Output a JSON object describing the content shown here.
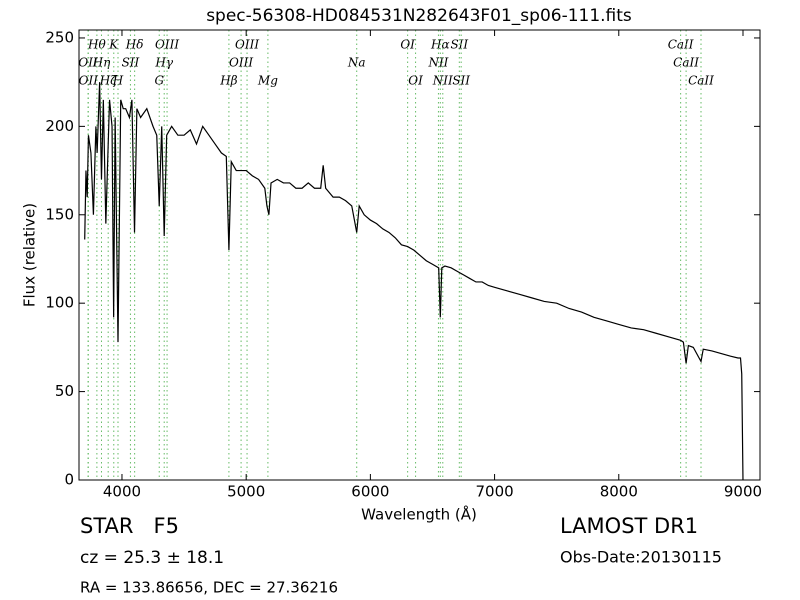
{
  "chart_data": {
    "type": "line",
    "title": "spec-56308-HD084531N282643F01_sp06-111.fits",
    "x_label": "Wavelength (Å)",
    "y_label": "Flux (relative)",
    "color": "#000000",
    "line_color": "#66bb66",
    "xlim": [
      3654,
      9137
    ],
    "ylim": [
      0,
      254.5
    ],
    "xticks": [
      4000,
      5000,
      6000,
      7000,
      8000,
      9000
    ],
    "yticks": [
      0,
      50,
      100,
      150,
      200,
      250
    ],
    "x": [
      3700,
      3710,
      3720,
      3730,
      3750,
      3770,
      3790,
      3800,
      3820,
      3835,
      3850,
      3870,
      3889,
      3900,
      3920,
      3933,
      3945,
      3968,
      3990,
      4010,
      4030,
      4060,
      4080,
      4101,
      4120,
      4150,
      4200,
      4250,
      4280,
      4300,
      4320,
      4340,
      4360,
      4400,
      4450,
      4500,
      4550,
      4600,
      4650,
      4700,
      4750,
      4800,
      4840,
      4861,
      4880,
      4920,
      4960,
      5000,
      5050,
      5100,
      5150,
      5167,
      5183,
      5200,
      5250,
      5300,
      5350,
      5400,
      5450,
      5500,
      5550,
      5600,
      5620,
      5640,
      5700,
      5750,
      5800,
      5850,
      5890,
      5910,
      5950,
      6000,
      6050,
      6100,
      6150,
      6200,
      6250,
      6300,
      6350,
      6400,
      6450,
      6500,
      6550,
      6563,
      6575,
      6600,
      6650,
      6700,
      6750,
      6800,
      6850,
      6900,
      6950,
      7000,
      7100,
      7200,
      7300,
      7400,
      7500,
      7600,
      7700,
      7800,
      7900,
      8000,
      8100,
      8200,
      8300,
      8400,
      8498,
      8520,
      8542,
      8560,
      8600,
      8662,
      8680,
      8750,
      8800,
      8850,
      8900,
      8960,
      8980,
      8990,
      9000
    ],
    "values": [
      136,
      175,
      160,
      195,
      185,
      150,
      200,
      185,
      225,
      170,
      215,
      145,
      190,
      215,
      200,
      92,
      205,
      78,
      215,
      210,
      210,
      205,
      215,
      140,
      210,
      205,
      210,
      200,
      195,
      155,
      200,
      138,
      195,
      200,
      195,
      195,
      198,
      190,
      200,
      195,
      190,
      185,
      183,
      130,
      180,
      175,
      175,
      175,
      172,
      170,
      165,
      155,
      150,
      168,
      170,
      168,
      168,
      165,
      165,
      168,
      165,
      165,
      178,
      165,
      160,
      160,
      158,
      155,
      140,
      155,
      150,
      147,
      145,
      142,
      140,
      137,
      133,
      132,
      130,
      127,
      124,
      122,
      120,
      92,
      120,
      121,
      120,
      118,
      116,
      114,
      112,
      112,
      110,
      109,
      107,
      105,
      103,
      101,
      100,
      97,
      95,
      92,
      90,
      88,
      86,
      85,
      83,
      81,
      79,
      78,
      66,
      76,
      75,
      67,
      74,
      73,
      72,
      71,
      70,
      69,
      69,
      60,
      0
    ],
    "lines": [
      {
        "label": "Hθ",
        "x": 3798
      },
      {
        "label": "K",
        "x": 3934
      },
      {
        "label": "Hδ",
        "x": 4102
      },
      {
        "label": "OIII",
        "x": 4363
      },
      {
        "label": "OIII",
        "x": 5007
      },
      {
        "label": "OI",
        "x": 6300
      },
      {
        "label": "Hα",
        "x": 6563
      },
      {
        "label": "SII",
        "x": 6716
      },
      {
        "label": "CaII",
        "x": 8498
      },
      {
        "label": "OII",
        "x": 3727
      },
      {
        "label": "Hη",
        "x": 3835
      },
      {
        "label": "SII",
        "x": 4068
      },
      {
        "label": "Hγ",
        "x": 4340
      },
      {
        "label": "OIII",
        "x": 4959
      },
      {
        "label": "Na",
        "x": 5890
      },
      {
        "label": "NII",
        "x": 6548
      },
      {
        "label": "CaII",
        "x": 8542
      },
      {
        "label": "OII",
        "x": 3729
      },
      {
        "label": "Hζ",
        "x": 3889
      },
      {
        "label": "H",
        "x": 3968
      },
      {
        "label": "G",
        "x": 4300
      },
      {
        "label": "Hβ",
        "x": 4861
      },
      {
        "label": "Mg",
        "x": 5175
      },
      {
        "label": "OI",
        "x": 6364
      },
      {
        "label": "NII",
        "x": 6583
      },
      {
        "label": "SII",
        "x": 6731
      },
      {
        "label": "CaII",
        "x": 8662
      }
    ],
    "object": "STAR   F5",
    "survey": "LAMOST DR1",
    "redshift": "cz = 25.3 ± 18.1",
    "obs_date": "Obs-Date:20130115",
    "coords": "RA = 133.86656, DEC = 27.36216"
  }
}
